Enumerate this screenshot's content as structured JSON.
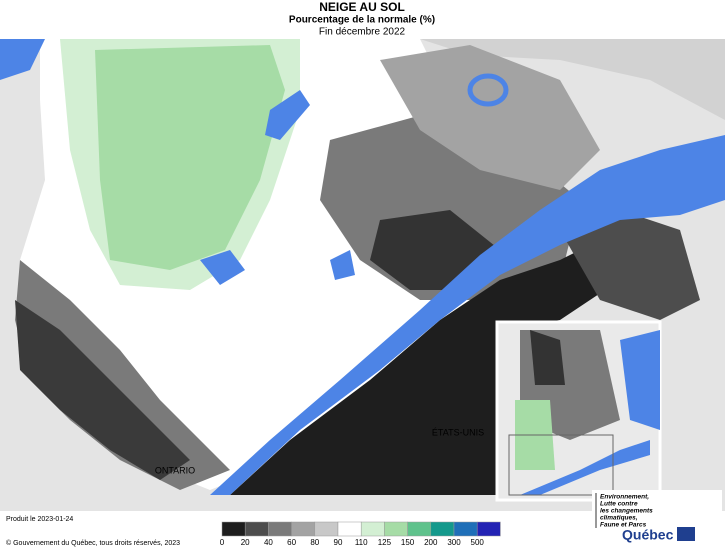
{
  "header": {
    "title": "NEIGE AU SOL",
    "subtitle": "Pourcentage de la normale (%)",
    "period": "Fin décembre 2022"
  },
  "map_labels": {
    "ontario": "ONTARIO",
    "usa": "ÉTATS-UNIS"
  },
  "legend": {
    "thresholds": [
      0,
      20,
      40,
      60,
      80,
      90,
      110,
      125,
      150,
      200,
      300,
      500
    ],
    "colors": [
      "#1e1e1e",
      "#4d4d4d",
      "#7a7a7a",
      "#a3a3a3",
      "#c8c8c8",
      "#ffffff",
      "#d3efd3",
      "#a6dca6",
      "#5fc28c",
      "#14998c",
      "#1f6fb8",
      "#2323b4"
    ]
  },
  "footer": {
    "produced": "Produit le 2023-01-24",
    "copyright": "© Gouvernement du Québec, tous droits réservés, 2023"
  },
  "logo": {
    "ministry": [
      "Environnement,",
      "Lutte contre",
      "les changements",
      "climatiques,",
      "Faune et Parcs"
    ],
    "brand": "Québec"
  }
}
